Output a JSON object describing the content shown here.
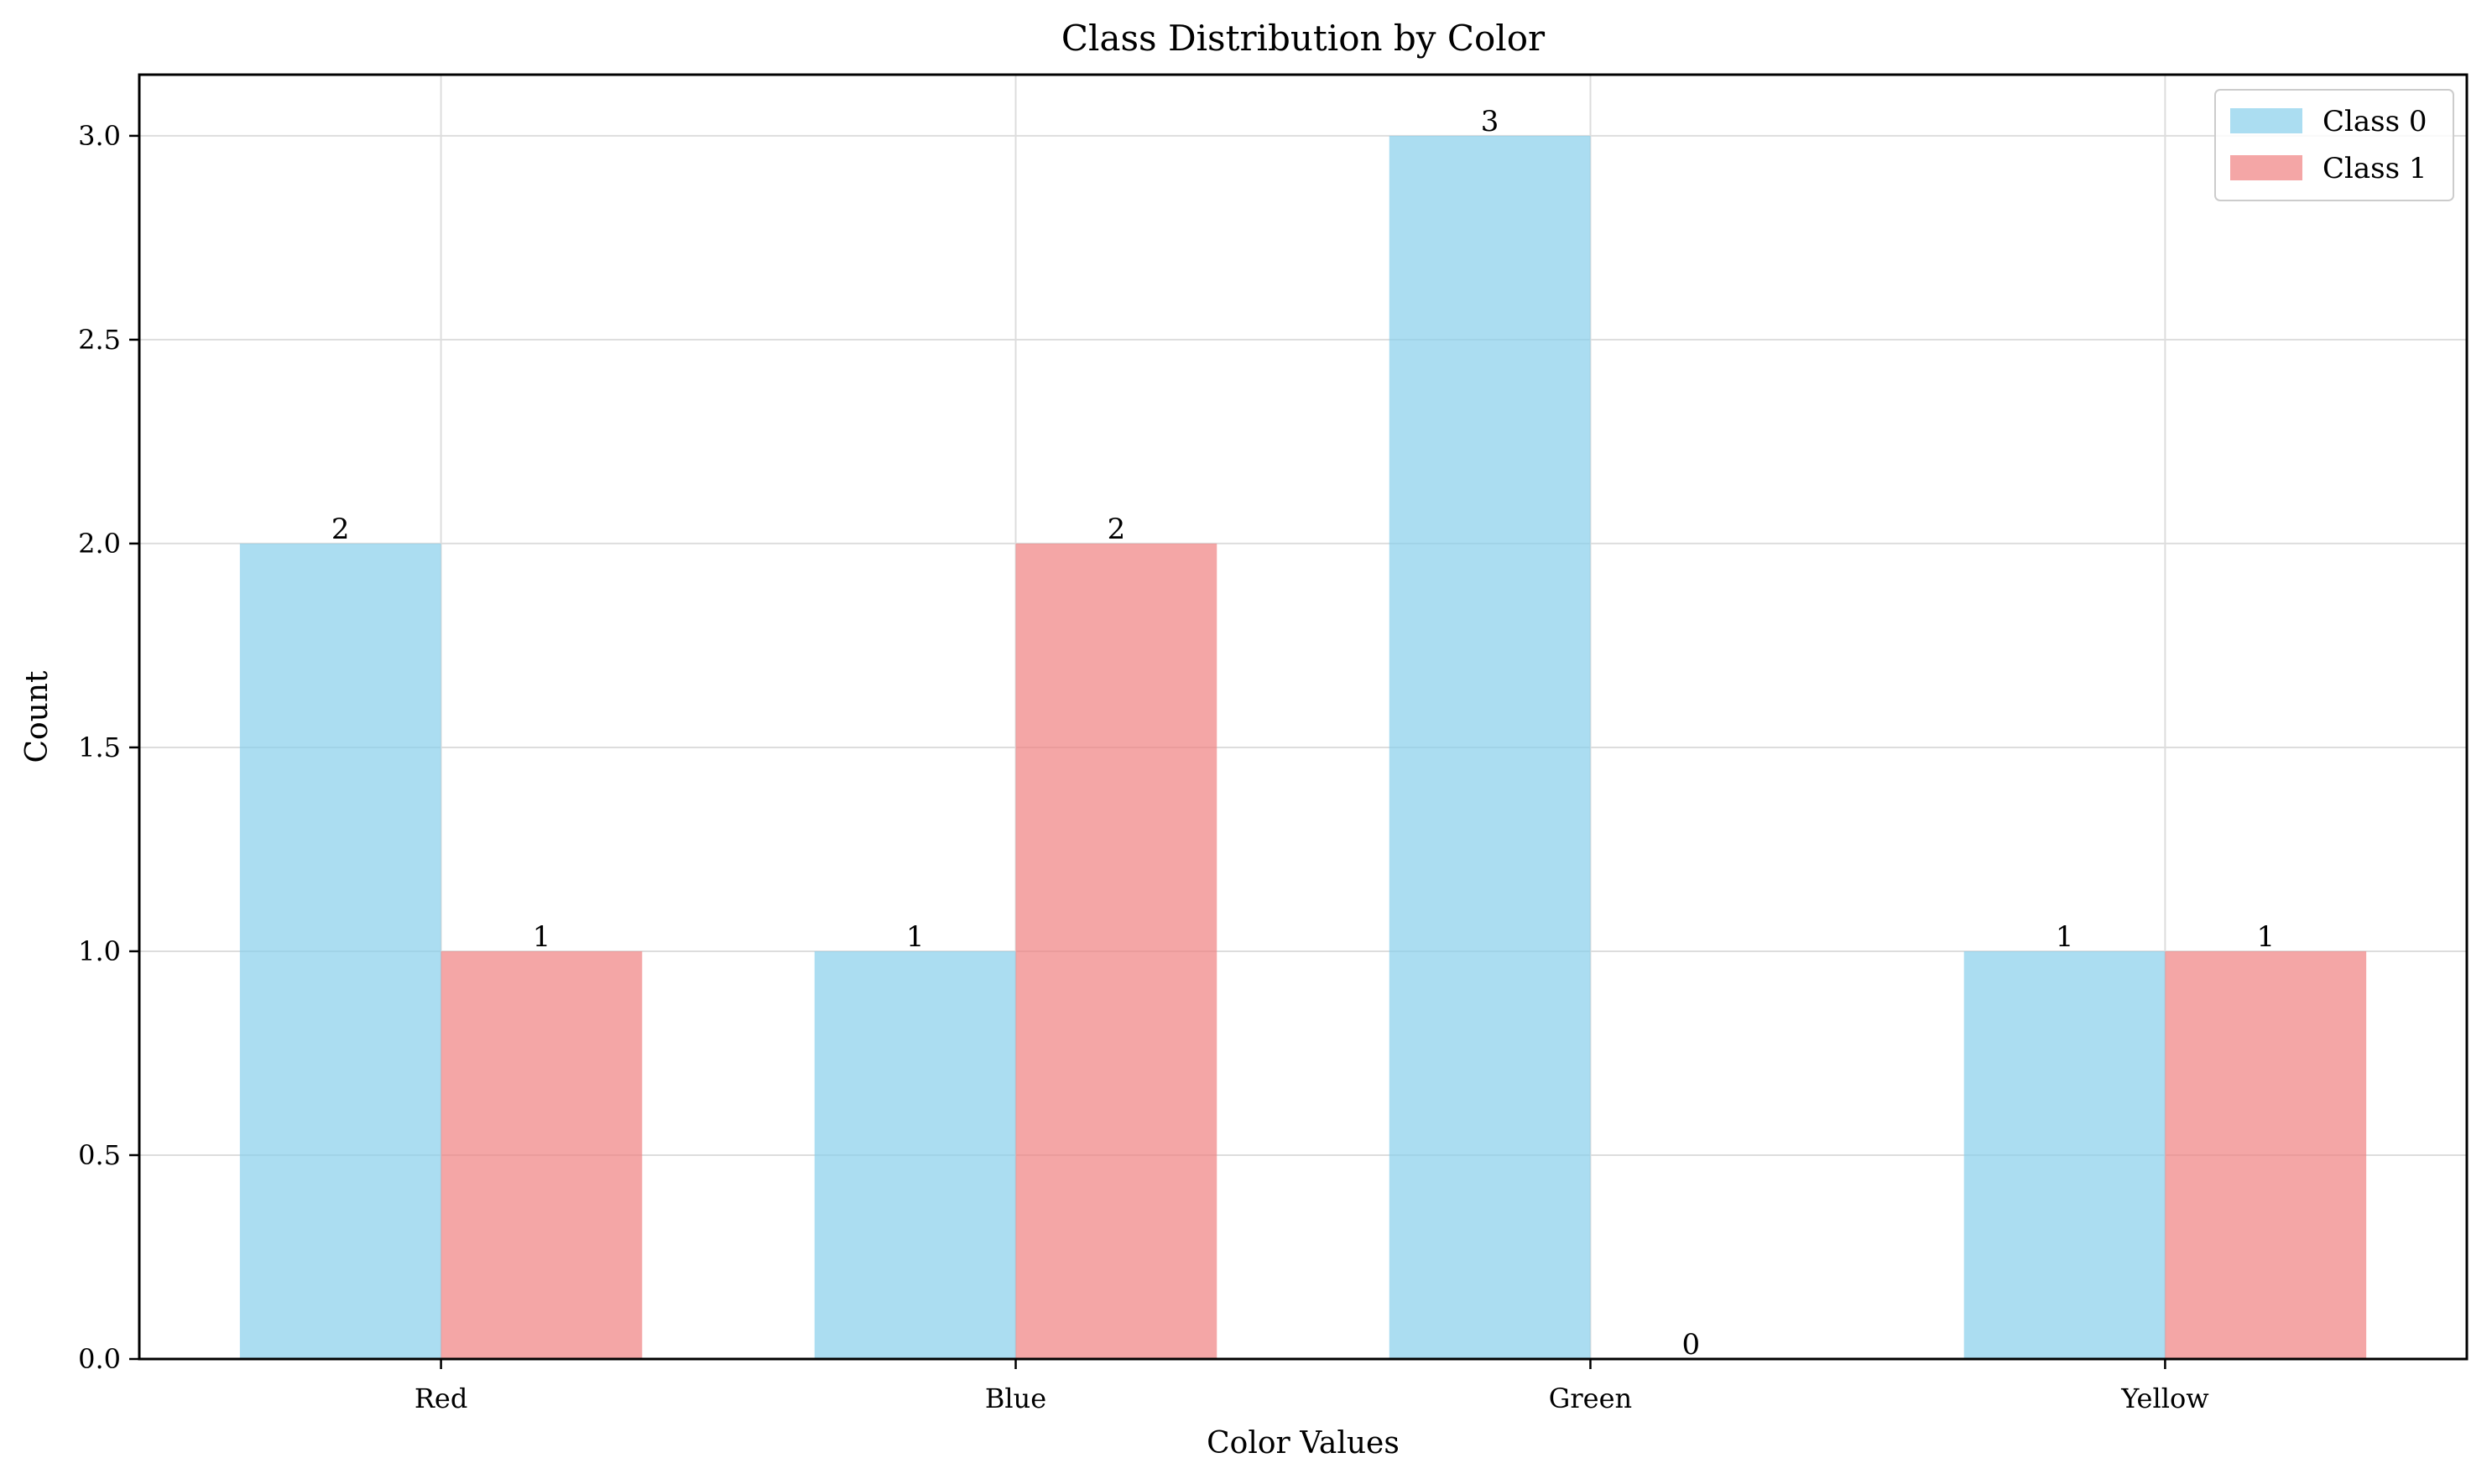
{
  "chart_data": {
    "type": "bar",
    "title": "Class Distribution by Color",
    "xlabel": "Color Values",
    "ylabel": "Count",
    "categories": [
      "Red",
      "Blue",
      "Green",
      "Yellow"
    ],
    "series": [
      {
        "name": "Class 0",
        "values": [
          2,
          1,
          3,
          1
        ],
        "color": "#87CEEB"
      },
      {
        "name": "Class 1",
        "values": [
          1,
          2,
          0,
          1
        ],
        "color": "#F08080"
      }
    ],
    "ylim": [
      0,
      3.15
    ],
    "yticks": [
      "0.0",
      "0.5",
      "1.0",
      "1.5",
      "2.0",
      "2.5",
      "3.0"
    ],
    "grid": true,
    "legend_position": "top-right",
    "bar_opacity": 0.7
  }
}
